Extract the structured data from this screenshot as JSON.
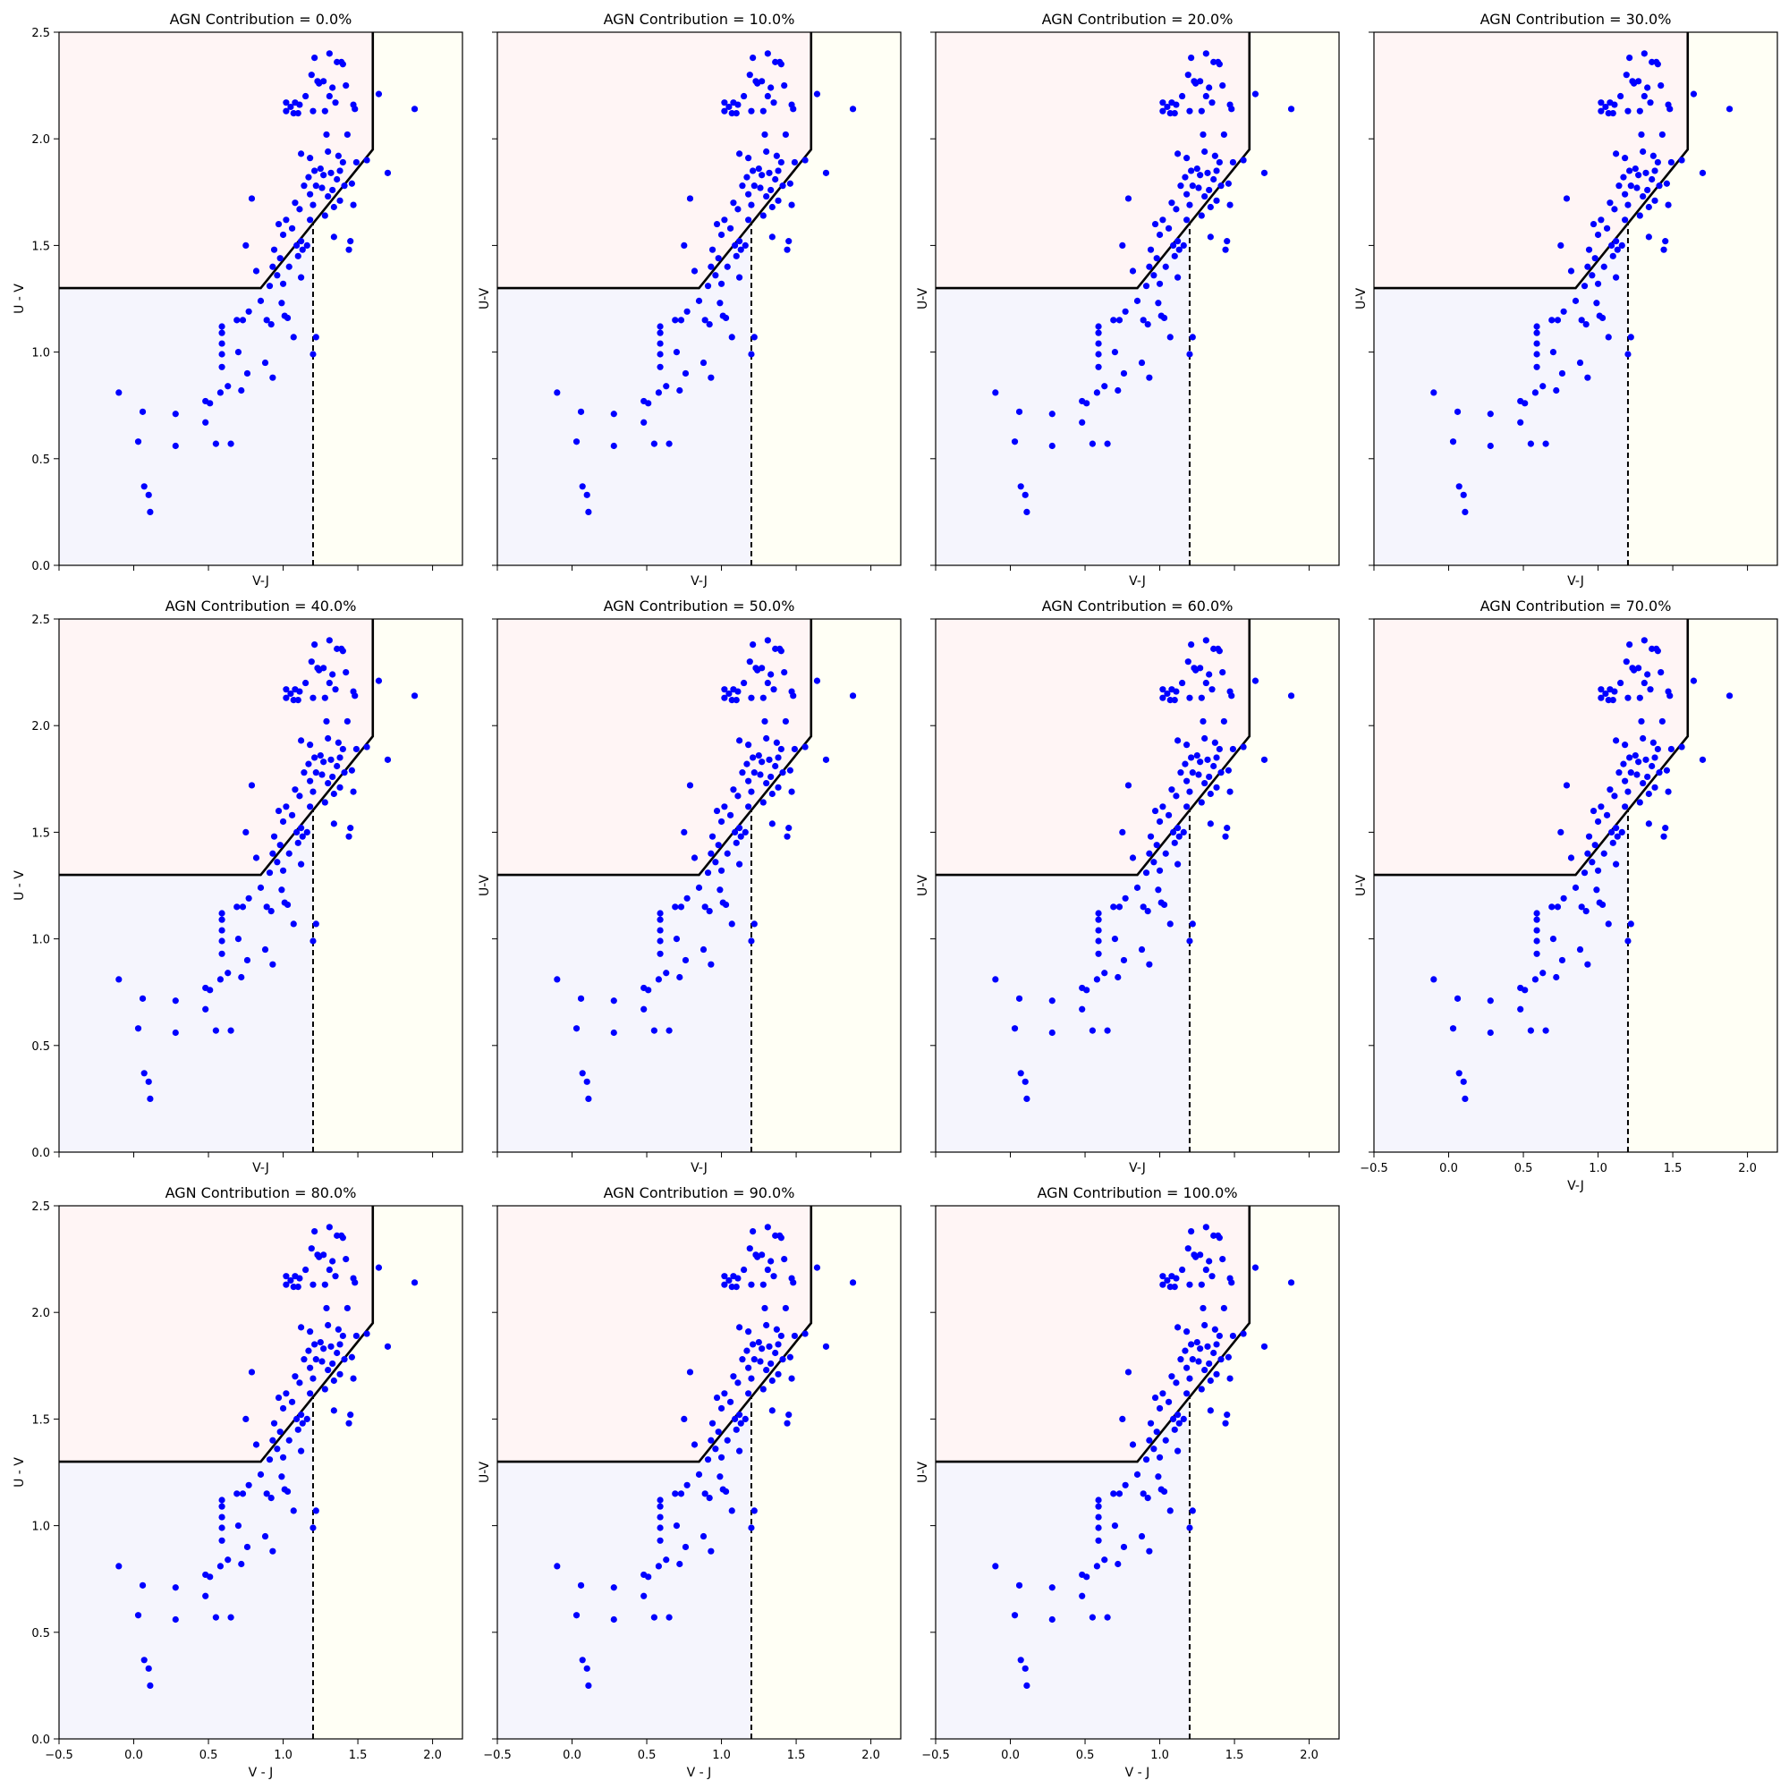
{
  "figure": {
    "background": "#ffffff",
    "layout": {
      "rows": 3,
      "cols": 4,
      "panel_count": 11
    }
  },
  "style": {
    "point_color": "#0000ff",
    "boundary_color": "#000000",
    "quiescent_fill": "#fff5f5",
    "starforming_fill": "#f5f5fd",
    "dusty_fill": "#fffff5"
  },
  "chart_data": [
    {
      "type": "scatter",
      "title": "AGN Contribution = 0.0%",
      "xlabel": "V-J",
      "ylabel": "U - V",
      "xlim": [
        -0.5,
        2.2
      ],
      "ylim": [
        0,
        2.5
      ],
      "series": "base"
    },
    {
      "type": "scatter",
      "title": "AGN Contribution = 10.0%",
      "xlabel": "V-J",
      "ylabel": "U-V",
      "xlim": [
        -0.5,
        2.2
      ],
      "ylim": [
        0,
        2.5
      ],
      "series": "base"
    },
    {
      "type": "scatter",
      "title": "AGN Contribution = 20.0%",
      "xlabel": "V-J",
      "ylabel": "U-V",
      "xlim": [
        -0.5,
        2.2
      ],
      "ylim": [
        0,
        2.5
      ],
      "series": "base"
    },
    {
      "type": "scatter",
      "title": "AGN Contribution = 30.0%",
      "xlabel": "V-J",
      "ylabel": "U-V",
      "xlim": [
        -0.5,
        2.2
      ],
      "ylim": [
        0,
        2.5
      ],
      "series": "base"
    },
    {
      "type": "scatter",
      "title": "AGN Contribution = 40.0%",
      "xlabel": "V-J",
      "ylabel": "U - V",
      "xlim": [
        -0.5,
        2.2
      ],
      "ylim": [
        0,
        2.5
      ],
      "series": "base"
    },
    {
      "type": "scatter",
      "title": "AGN Contribution = 50.0%",
      "xlabel": "V-J",
      "ylabel": "U-V",
      "xlim": [
        -0.5,
        2.2
      ],
      "ylim": [
        0,
        2.5
      ],
      "series": "base"
    },
    {
      "type": "scatter",
      "title": "AGN Contribution = 60.0%",
      "xlabel": "V-J",
      "ylabel": "U-V",
      "xlim": [
        -0.5,
        2.2
      ],
      "ylim": [
        0,
        2.5
      ],
      "series": "base"
    },
    {
      "type": "scatter",
      "title": "AGN Contribution = 70.0%",
      "xlabel": "V-J",
      "ylabel": "U-V",
      "xlim": [
        -0.5,
        2.2
      ],
      "ylim": [
        0,
        2.5
      ],
      "series": "base"
    },
    {
      "type": "scatter",
      "title": "AGN Contribution = 80.0%",
      "xlabel": "V - J",
      "ylabel": "U - V",
      "xlim": [
        -0.5,
        2.2
      ],
      "ylim": [
        0,
        2.5
      ],
      "series": "base"
    },
    {
      "type": "scatter",
      "title": "AGN Contribution = 90.0%",
      "xlabel": "V - J",
      "ylabel": "U-V",
      "xlim": [
        -0.5,
        2.2
      ],
      "ylim": [
        0,
        2.5
      ],
      "series": "base"
    },
    {
      "type": "scatter",
      "title": "AGN Contribution = 100.0%",
      "xlabel": "V - J",
      "ylabel": "U-V",
      "xlim": [
        -0.5,
        2.2
      ],
      "ylim": [
        0,
        2.5
      ],
      "series": "base"
    }
  ],
  "shared": {
    "xticks": [
      -0.5,
      0.0,
      0.5,
      1.0,
      1.5,
      2.0
    ],
    "xtick_labels": [
      "−0.5",
      "0.0",
      "0.5",
      "1.0",
      "1.5",
      "2.0"
    ],
    "yticks": [
      0.0,
      0.5,
      1.0,
      1.5,
      2.0,
      2.5
    ],
    "ytick_labels": [
      "0.0",
      "0.5",
      "1.0",
      "1.5",
      "2.0",
      "2.5"
    ],
    "selection_boundary": [
      [
        -0.5,
        1.3
      ],
      [
        0.85,
        1.3
      ],
      [
        1.6,
        1.95
      ],
      [
        1.6,
        2.5
      ]
    ],
    "dashed_line_x": 1.2,
    "points": [
      [
        -0.1,
        0.81
      ],
      [
        0.03,
        0.58
      ],
      [
        0.06,
        0.72
      ],
      [
        0.07,
        0.37
      ],
      [
        0.1,
        0.33
      ],
      [
        0.11,
        0.25
      ],
      [
        0.28,
        0.71
      ],
      [
        0.28,
        0.56
      ],
      [
        0.48,
        0.67
      ],
      [
        0.48,
        0.77
      ],
      [
        0.51,
        0.76
      ],
      [
        0.55,
        0.57
      ],
      [
        0.58,
        0.81
      ],
      [
        0.59,
        1.12
      ],
      [
        0.59,
        1.09
      ],
      [
        0.59,
        1.04
      ],
      [
        0.59,
        0.99
      ],
      [
        0.59,
        0.93
      ],
      [
        0.63,
        0.84
      ],
      [
        0.65,
        0.57
      ],
      [
        0.69,
        1.15
      ],
      [
        0.7,
        1.0
      ],
      [
        0.72,
        0.82
      ],
      [
        0.73,
        1.15
      ],
      [
        0.75,
        1.5
      ],
      [
        0.76,
        0.9
      ],
      [
        0.77,
        1.19
      ],
      [
        0.79,
        1.72
      ],
      [
        0.82,
        1.38
      ],
      [
        0.85,
        1.24
      ],
      [
        0.88,
        0.95
      ],
      [
        0.89,
        1.15
      ],
      [
        0.91,
        1.31
      ],
      [
        0.92,
        1.13
      ],
      [
        0.93,
        1.4
      ],
      [
        0.93,
        0.88
      ],
      [
        0.94,
        1.48
      ],
      [
        0.96,
        1.36
      ],
      [
        0.97,
        1.6
      ],
      [
        0.98,
        1.44
      ],
      [
        0.99,
        1.23
      ],
      [
        1.0,
        1.55
      ],
      [
        1.0,
        1.32
      ],
      [
        1.01,
        1.17
      ],
      [
        1.02,
        1.62
      ],
      [
        1.02,
        2.17
      ],
      [
        1.02,
        2.13
      ],
      [
        1.03,
        1.16
      ],
      [
        1.04,
        1.4
      ],
      [
        1.05,
        2.15
      ],
      [
        1.06,
        1.58
      ],
      [
        1.07,
        2.12
      ],
      [
        1.07,
        1.07
      ],
      [
        1.08,
        1.7
      ],
      [
        1.08,
        2.17
      ],
      [
        1.09,
        1.5
      ],
      [
        1.1,
        1.45
      ],
      [
        1.1,
        2.12
      ],
      [
        1.11,
        1.67
      ],
      [
        1.11,
        2.16
      ],
      [
        1.12,
        1.35
      ],
      [
        1.12,
        1.93
      ],
      [
        1.12,
        1.52
      ],
      [
        1.13,
        1.48
      ],
      [
        1.14,
        1.78
      ],
      [
        1.15,
        2.2
      ],
      [
        1.16,
        1.5
      ],
      [
        1.17,
        1.82
      ],
      [
        1.18,
        1.91
      ],
      [
        1.18,
        1.74
      ],
      [
        1.18,
        1.62
      ],
      [
        1.19,
        2.3
      ],
      [
        1.2,
        1.69
      ],
      [
        1.2,
        2.13
      ],
      [
        1.2,
        0.99
      ],
      [
        1.21,
        2.38
      ],
      [
        1.21,
        1.85
      ],
      [
        1.22,
        1.78
      ],
      [
        1.22,
        1.07
      ],
      [
        1.23,
        2.27
      ],
      [
        1.24,
        2.26
      ],
      [
        1.25,
        1.86
      ],
      [
        1.26,
        1.77
      ],
      [
        1.27,
        2.27
      ],
      [
        1.27,
        1.83
      ],
      [
        1.28,
        2.13
      ],
      [
        1.28,
        1.64
      ],
      [
        1.29,
        2.02
      ],
      [
        1.3,
        1.94
      ],
      [
        1.3,
        1.73
      ],
      [
        1.31,
        2.2
      ],
      [
        1.31,
        2.4
      ],
      [
        1.32,
        1.84
      ],
      [
        1.33,
        1.76
      ],
      [
        1.33,
        2.24
      ],
      [
        1.34,
        1.68
      ],
      [
        1.34,
        1.54
      ],
      [
        1.35,
        2.17
      ],
      [
        1.36,
        1.81
      ],
      [
        1.36,
        2.36
      ],
      [
        1.37,
        1.92
      ],
      [
        1.38,
        1.85
      ],
      [
        1.38,
        1.71
      ],
      [
        1.39,
        2.36
      ],
      [
        1.4,
        2.35
      ],
      [
        1.4,
        1.89
      ],
      [
        1.41,
        1.78
      ],
      [
        1.42,
        2.25
      ],
      [
        1.43,
        2.02
      ],
      [
        1.44,
        1.48
      ],
      [
        1.45,
        1.52
      ],
      [
        1.46,
        1.79
      ],
      [
        1.47,
        1.69
      ],
      [
        1.47,
        2.16
      ],
      [
        1.48,
        2.14
      ],
      [
        1.49,
        1.89
      ],
      [
        1.56,
        1.9
      ],
      [
        1.64,
        2.21
      ],
      [
        1.7,
        1.84
      ],
      [
        1.88,
        2.14
      ]
    ]
  }
}
